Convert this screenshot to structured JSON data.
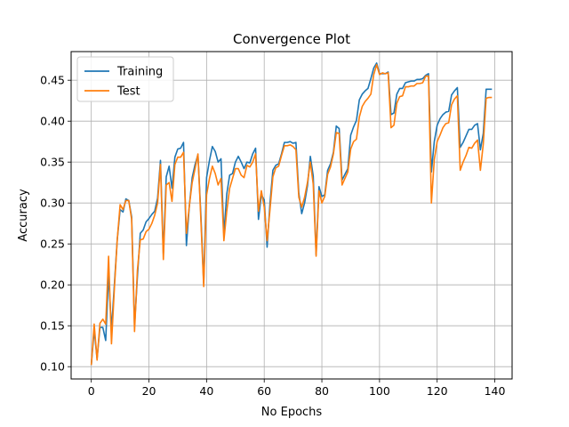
{
  "chart_data": {
    "type": "line",
    "title": "Convergence Plot",
    "xlabel": "No Epochs",
    "ylabel": "Accuracy",
    "xlim": [
      -7,
      146
    ],
    "ylim": [
      0.085,
      0.485
    ],
    "xticks": [
      0,
      20,
      40,
      60,
      80,
      100,
      120,
      140
    ],
    "yticks": [
      0.1,
      0.15,
      0.2,
      0.25,
      0.3,
      0.35,
      0.4,
      0.45
    ],
    "ytick_labels": [
      "0.10",
      "0.15",
      "0.20",
      "0.25",
      "0.30",
      "0.35",
      "0.40",
      "0.45"
    ],
    "grid": true,
    "legend_position": "top-left",
    "x": [
      0,
      1,
      2,
      3,
      4,
      5,
      6,
      7,
      8,
      9,
      10,
      11,
      12,
      13,
      14,
      15,
      16,
      17,
      18,
      19,
      20,
      21,
      22,
      23,
      24,
      25,
      26,
      27,
      28,
      29,
      30,
      31,
      32,
      33,
      34,
      35,
      36,
      37,
      38,
      39,
      40,
      41,
      42,
      43,
      44,
      45,
      46,
      47,
      48,
      49,
      50,
      51,
      52,
      53,
      54,
      55,
      56,
      57,
      58,
      59,
      60,
      61,
      62,
      63,
      64,
      65,
      66,
      67,
      68,
      69,
      70,
      71,
      72,
      73,
      74,
      75,
      76,
      77,
      78,
      79,
      80,
      81,
      82,
      83,
      84,
      85,
      86,
      87,
      88,
      89,
      90,
      91,
      92,
      93,
      94,
      95,
      96,
      97,
      98,
      99,
      100,
      101,
      102,
      103,
      104,
      105,
      106,
      107,
      108,
      109,
      110,
      111,
      112,
      113,
      114,
      115,
      116,
      117,
      118,
      119,
      120,
      121,
      122,
      123,
      124,
      125,
      126,
      127,
      128,
      129,
      130,
      131,
      132,
      133,
      134,
      135,
      136,
      137,
      138,
      139
    ],
    "series": [
      {
        "name": "Training",
        "color": "#1f77b4",
        "values": [
          0.102,
          0.145,
          0.11,
          0.148,
          0.148,
          0.132,
          0.213,
          0.145,
          0.2,
          0.255,
          0.292,
          0.289,
          0.305,
          0.303,
          0.283,
          0.15,
          0.21,
          0.263,
          0.267,
          0.277,
          0.281,
          0.286,
          0.29,
          0.306,
          0.352,
          0.238,
          0.332,
          0.345,
          0.318,
          0.356,
          0.366,
          0.367,
          0.374,
          0.248,
          0.296,
          0.331,
          0.347,
          0.359,
          0.287,
          0.202,
          0.331,
          0.352,
          0.369,
          0.363,
          0.35,
          0.354,
          0.262,
          0.311,
          0.334,
          0.336,
          0.35,
          0.357,
          0.35,
          0.342,
          0.35,
          0.349,
          0.36,
          0.367,
          0.28,
          0.31,
          0.304,
          0.246,
          0.3,
          0.34,
          0.346,
          0.348,
          0.36,
          0.374,
          0.374,
          0.375,
          0.373,
          0.374,
          0.312,
          0.287,
          0.3,
          0.321,
          0.357,
          0.333,
          0.237,
          0.32,
          0.308,
          0.31,
          0.34,
          0.348,
          0.362,
          0.394,
          0.391,
          0.328,
          0.335,
          0.342,
          0.383,
          0.393,
          0.401,
          0.426,
          0.433,
          0.437,
          0.44,
          0.452,
          0.465,
          0.471,
          0.458,
          0.458,
          0.458,
          0.46,
          0.408,
          0.41,
          0.433,
          0.44,
          0.44,
          0.447,
          0.448,
          0.449,
          0.449,
          0.451,
          0.451,
          0.452,
          0.456,
          0.458,
          0.338,
          0.375,
          0.395,
          0.403,
          0.408,
          0.411,
          0.412,
          0.432,
          0.437,
          0.441,
          0.368,
          0.374,
          0.382,
          0.39,
          0.39,
          0.395,
          0.397,
          0.365,
          0.385,
          0.439,
          0.439,
          0.439
        ]
      },
      {
        "name": "Test",
        "color": "#ff7f0e",
        "values": [
          0.102,
          0.152,
          0.108,
          0.153,
          0.158,
          0.152,
          0.235,
          0.128,
          0.195,
          0.255,
          0.298,
          0.292,
          0.303,
          0.303,
          0.28,
          0.143,
          0.218,
          0.255,
          0.256,
          0.265,
          0.268,
          0.275,
          0.285,
          0.3,
          0.347,
          0.231,
          0.322,
          0.325,
          0.302,
          0.347,
          0.356,
          0.356,
          0.362,
          0.263,
          0.296,
          0.325,
          0.342,
          0.36,
          0.281,
          0.198,
          0.31,
          0.33,
          0.345,
          0.336,
          0.322,
          0.33,
          0.254,
          0.29,
          0.318,
          0.33,
          0.342,
          0.342,
          0.334,
          0.331,
          0.346,
          0.344,
          0.35,
          0.36,
          0.29,
          0.315,
          0.295,
          0.254,
          0.292,
          0.332,
          0.343,
          0.345,
          0.358,
          0.37,
          0.37,
          0.371,
          0.369,
          0.365,
          0.307,
          0.295,
          0.307,
          0.325,
          0.35,
          0.323,
          0.235,
          0.315,
          0.3,
          0.308,
          0.335,
          0.344,
          0.36,
          0.386,
          0.385,
          0.322,
          0.33,
          0.338,
          0.366,
          0.375,
          0.378,
          0.405,
          0.418,
          0.424,
          0.428,
          0.433,
          0.457,
          0.469,
          0.457,
          0.459,
          0.458,
          0.459,
          0.392,
          0.395,
          0.422,
          0.43,
          0.431,
          0.442,
          0.442,
          0.443,
          0.443,
          0.446,
          0.446,
          0.447,
          0.455,
          0.455,
          0.3,
          0.353,
          0.375,
          0.383,
          0.392,
          0.397,
          0.398,
          0.42,
          0.427,
          0.431,
          0.34,
          0.35,
          0.358,
          0.368,
          0.367,
          0.373,
          0.377,
          0.34,
          0.372,
          0.428,
          0.429,
          0.429
        ]
      }
    ]
  }
}
